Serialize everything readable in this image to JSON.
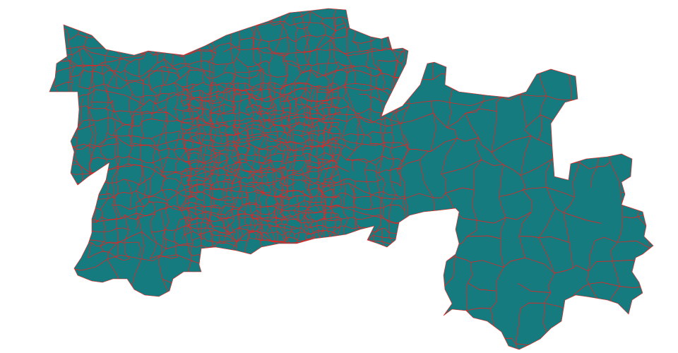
{
  "map": {
    "region_fill": "#167b7e",
    "boundary_color": "#ff1a1a",
    "background": "#ffffff"
  }
}
